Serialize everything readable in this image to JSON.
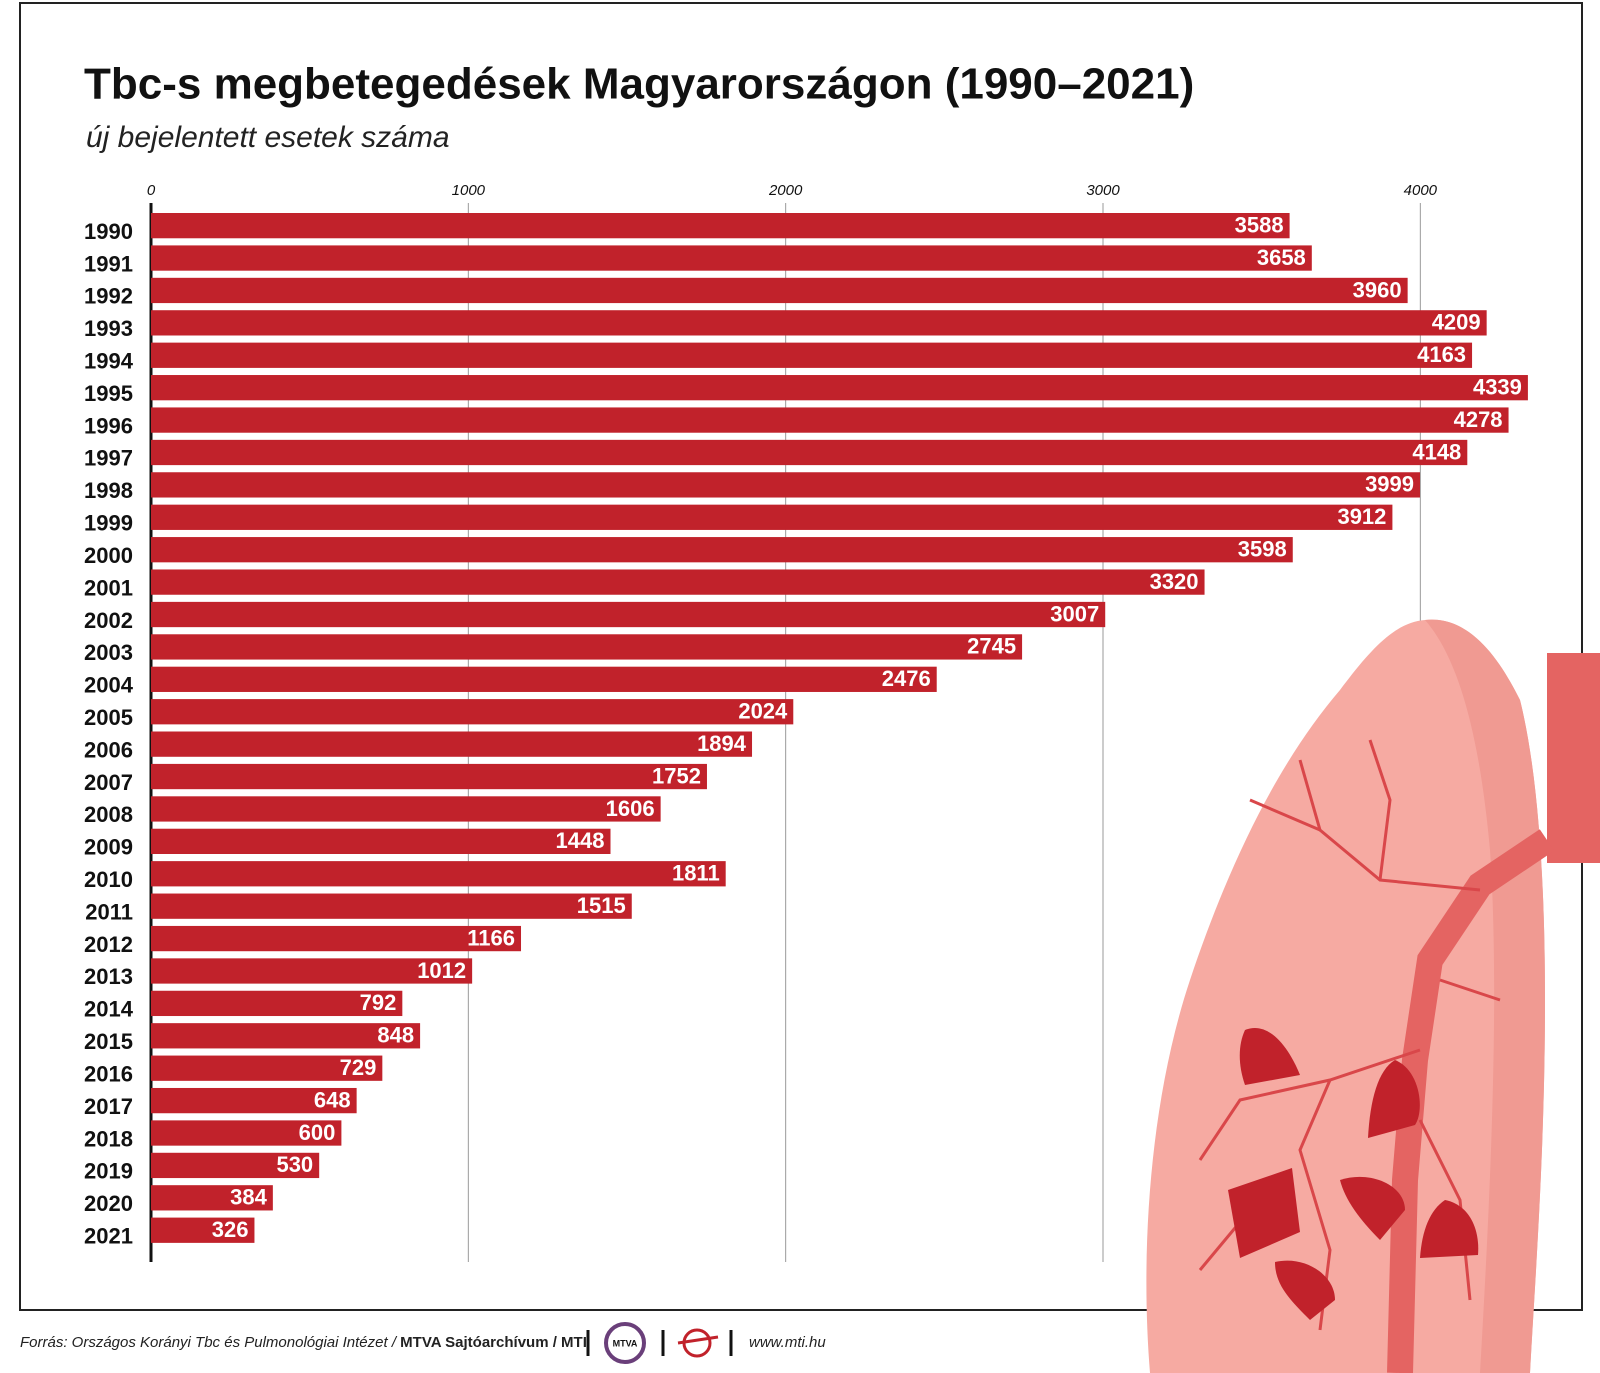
{
  "chart_data": {
    "type": "bar",
    "orientation": "horizontal",
    "title": "Tbc-s megbetegedések Magyarországon (1990–2021)",
    "subtitle": "új bejelentett esetek száma",
    "categories": [
      "1990",
      "1991",
      "1992",
      "1993",
      "1994",
      "1995",
      "1996",
      "1997",
      "1998",
      "1999",
      "2000",
      "2001",
      "2002",
      "2003",
      "2004",
      "2005",
      "2006",
      "2007",
      "2008",
      "2009",
      "2010",
      "2011",
      "2012",
      "2013",
      "2014",
      "2015",
      "2016",
      "2017",
      "2018",
      "2019",
      "2020",
      "2021"
    ],
    "values": [
      3588,
      3658,
      3960,
      4209,
      4163,
      4339,
      4278,
      4148,
      3999,
      3912,
      3598,
      3320,
      3007,
      2745,
      2476,
      2024,
      1894,
      1752,
      1606,
      1448,
      1811,
      1515,
      1166,
      1012,
      792,
      848,
      729,
      648,
      600,
      530,
      384,
      326
    ],
    "color": "#c1222b",
    "xlim": [
      0,
      4500
    ],
    "xticks": [
      0,
      1000,
      2000,
      3000,
      4000
    ],
    "grid": true,
    "source": "Forrás: Országos Korányi Tbc és Pulmonológiai Intézet /",
    "publisher": "MTVA Sajtóarchívum / MTI",
    "logo": "MTVA",
    "website": "www.mti.hu"
  }
}
